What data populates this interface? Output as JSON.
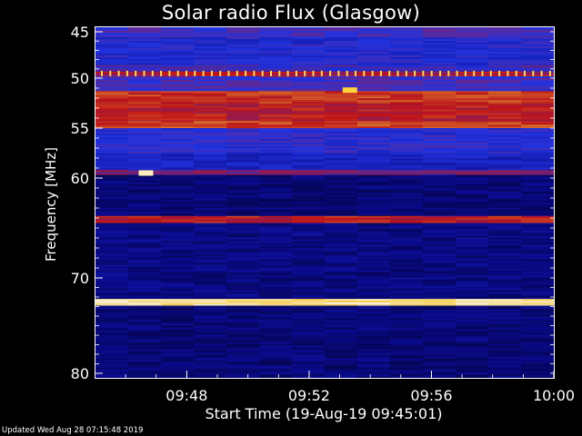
{
  "chart_data": {
    "type": "heatmap",
    "title": "Solar radio Flux (Glasgow)",
    "xlabel": "Start Time (19-Aug-19 09:45:01)",
    "ylabel": "Frequency [MHz]",
    "x_ticks": [
      "09:48",
      "09:52",
      "09:56",
      "10:00"
    ],
    "y_ticks": [
      "45",
      "50",
      "55",
      "60",
      "70",
      "80"
    ],
    "y_tick_values": [
      45,
      50,
      55,
      60,
      70,
      80
    ],
    "xlim": [
      "09:45:01",
      "10:00:00"
    ],
    "ylim_top_bottom": [
      44.3,
      81
    ],
    "colormap": [
      "#00002a",
      "#0a0a8c",
      "#2233e0",
      "#c81414",
      "#ffd23c",
      "#ffffff"
    ],
    "bands": [
      {
        "freq_start": 44.3,
        "freq_end": 45.6,
        "level": 0.42
      },
      {
        "freq_start": 45.6,
        "freq_end": 48.6,
        "level": 0.36
      },
      {
        "freq_start": 48.6,
        "freq_end": 49.3,
        "level": 0.42
      },
      {
        "freq_start": 49.3,
        "freq_end": 49.8,
        "level": 0.58
      },
      {
        "freq_start": 49.8,
        "freq_end": 51.3,
        "level": 0.42
      },
      {
        "freq_start": 51.3,
        "freq_end": 52.6,
        "level": 0.66
      },
      {
        "freq_start": 52.6,
        "freq_end": 54.3,
        "level": 0.61
      },
      {
        "freq_start": 54.3,
        "freq_end": 55.0,
        "level": 0.68
      },
      {
        "freq_start": 55.0,
        "freq_end": 57.5,
        "level": 0.38
      },
      {
        "freq_start": 57.5,
        "freq_end": 59.2,
        "level": 0.3
      },
      {
        "freq_start": 59.2,
        "freq_end": 59.7,
        "level": 0.5
      },
      {
        "freq_start": 59.7,
        "freq_end": 63.8,
        "level": 0.14
      },
      {
        "freq_start": 63.8,
        "freq_end": 64.5,
        "level": 0.62
      },
      {
        "freq_start": 64.5,
        "freq_end": 72.2,
        "level": 0.16
      },
      {
        "freq_start": 72.2,
        "freq_end": 72.9,
        "level": 0.92
      },
      {
        "freq_start": 72.9,
        "freq_end": 81.0,
        "level": 0.14
      }
    ],
    "bursts": [
      {
        "time": "09:46:40",
        "freq": 59.5,
        "level": 0.95
      },
      {
        "time": "09:53:20",
        "freq": 51.2,
        "level": 0.85
      }
    ],
    "grid": false
  },
  "footer": {
    "updated": "Updated Wed Aug 28 07:15:48 2019"
  }
}
